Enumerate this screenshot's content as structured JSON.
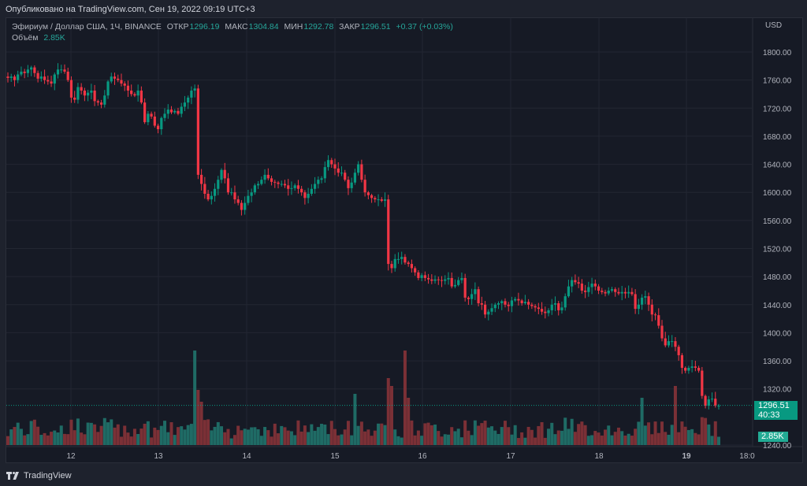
{
  "header": {
    "published": "Опубликовано на TradingView.com, Сен 19, 2022 09:19 UTC+3"
  },
  "legend": {
    "symbol": "Эфириум / Доллар США, 1Ч, BINANCE",
    "open_label": "ОТКР",
    "open": "1296.19",
    "high_label": "МАКС",
    "high": "1304.84",
    "low_label": "МИН",
    "low": "1292.78",
    "close_label": "ЗАКР",
    "close": "1296.51",
    "change": "+0.37 (+0.03%)",
    "volume_label": "Объём",
    "volume": "2.85K"
  },
  "price_axis": {
    "currency": "USD",
    "ticks": [
      "1800.00",
      "1760.00",
      "1720.00",
      "1680.00",
      "1640.00",
      "1600.00",
      "1560.00",
      "1520.00",
      "1480.00",
      "1440.00",
      "1400.00",
      "1360.00",
      "1320.00",
      "1240.00"
    ]
  },
  "time_axis": {
    "ticks": [
      "12",
      "13",
      "14",
      "15",
      "16",
      "17",
      "18",
      "19",
      "18:0"
    ]
  },
  "last_price": {
    "value": "1296.51",
    "countdown": "40:33"
  },
  "last_volume": "2.85K",
  "footer": {
    "brand": "TradingView"
  },
  "colors": {
    "up": "#089981",
    "down": "#f23645",
    "vol_up": "#1f6b65",
    "vol_down": "#7b3036",
    "bg": "#161a25",
    "grid": "#232632"
  },
  "chart_data": {
    "type": "candlestick",
    "title": "Эфириум / Доллар США, 1Ч, BINANCE",
    "xlabel": "",
    "ylabel": "USD",
    "ylim": [
      1240,
      1810
    ],
    "x_ticks": [
      "12",
      "13",
      "14",
      "15",
      "16",
      "17",
      "18",
      "19"
    ],
    "close_path": [
      1763,
      1765,
      1760,
      1768,
      1772,
      1770,
      1775,
      1778,
      1770,
      1762,
      1765,
      1760,
      1758,
      1755,
      1768,
      1775,
      1775,
      1772,
      1760,
      1735,
      1732,
      1750,
      1745,
      1738,
      1742,
      1745,
      1730,
      1728,
      1725,
      1738,
      1758,
      1765,
      1762,
      1760,
      1755,
      1752,
      1745,
      1740,
      1738,
      1745,
      1728,
      1700,
      1712,
      1708,
      1695,
      1690,
      1706,
      1712,
      1718,
      1714,
      1716,
      1712,
      1722,
      1728,
      1735,
      1745,
      1748,
      1625,
      1612,
      1598,
      1590,
      1595,
      1605,
      1618,
      1632,
      1620,
      1600,
      1600,
      1590,
      1585,
      1575,
      1585,
      1595,
      1600,
      1610,
      1612,
      1618,
      1625,
      1620,
      1615,
      1614,
      1612,
      1612,
      1610,
      1605,
      1606,
      1610,
      1605,
      1600,
      1592,
      1598,
      1605,
      1612,
      1618,
      1620,
      1636,
      1646,
      1640,
      1634,
      1628,
      1628,
      1618,
      1606,
      1614,
      1628,
      1640,
      1618,
      1600,
      1596,
      1592,
      1590,
      1590,
      1588,
      1590,
      1498,
      1492,
      1505,
      1505,
      1508,
      1500,
      1498,
      1492,
      1486,
      1478,
      1482,
      1478,
      1476,
      1474,
      1476,
      1475,
      1474,
      1476,
      1478,
      1466,
      1468,
      1475,
      1478,
      1450,
      1448,
      1455,
      1462,
      1442,
      1440,
      1426,
      1430,
      1435,
      1440,
      1442,
      1445,
      1440,
      1438,
      1446,
      1448,
      1446,
      1442,
      1444,
      1440,
      1438,
      1436,
      1434,
      1430,
      1428,
      1432,
      1440,
      1442,
      1432,
      1436,
      1452,
      1466,
      1475,
      1472,
      1470,
      1460,
      1458,
      1465,
      1470,
      1466,
      1460,
      1458,
      1456,
      1460,
      1462,
      1458,
      1456,
      1458,
      1456,
      1458,
      1455,
      1434,
      1440,
      1450,
      1452,
      1440,
      1426,
      1425,
      1410,
      1392,
      1382,
      1388,
      1388,
      1380,
      1368,
      1350,
      1346,
      1350,
      1352,
      1350,
      1346,
      1310,
      1296,
      1305,
      1306,
      1296,
      1296
    ],
    "volume_note": "hourly volume bars, peaks around Sep 13 evening and Sep 15 afternoon; last volume 2.85K"
  }
}
